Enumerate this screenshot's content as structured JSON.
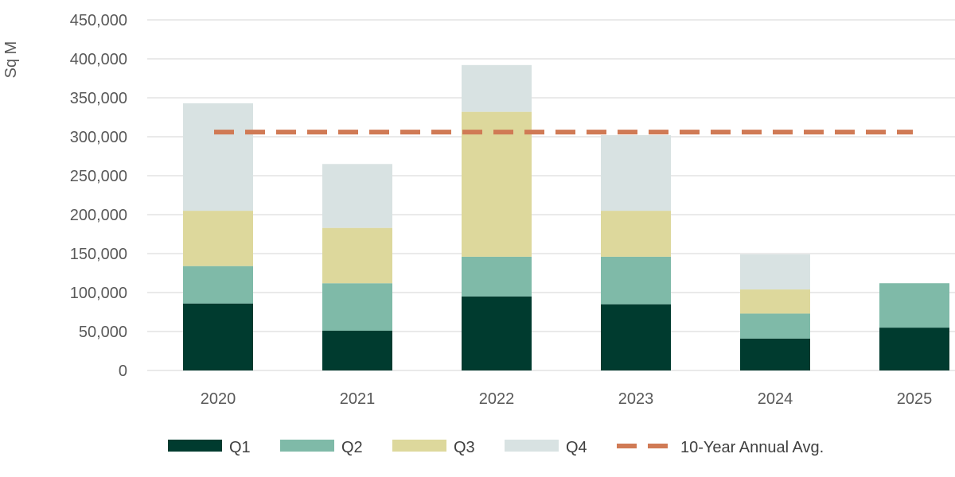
{
  "chart_data": {
    "type": "bar",
    "stacked": true,
    "title": "",
    "xlabel": "",
    "ylabel": "Sq M",
    "ylim": [
      0,
      450000
    ],
    "yticks": [
      0,
      50000,
      100000,
      150000,
      200000,
      250000,
      300000,
      350000,
      400000,
      450000
    ],
    "ytick_labels": [
      "0",
      "50,000",
      "100,000",
      "150,000",
      "200,000",
      "250,000",
      "300,000",
      "350,000",
      "400,000",
      "450,000"
    ],
    "grid": true,
    "legend_position": "bottom",
    "categories": [
      "2020",
      "2021",
      "2022",
      "2023",
      "2024",
      "2025"
    ],
    "series": [
      {
        "name": "Q1",
        "color": "#003b2f",
        "values": [
          86000,
          51000,
          95000,
          85000,
          41000,
          55000
        ]
      },
      {
        "name": "Q2",
        "color": "#7fbaa8",
        "values": [
          48000,
          61000,
          51000,
          61000,
          32000,
          57000
        ]
      },
      {
        "name": "Q3",
        "color": "#ddd89c",
        "values": [
          71000,
          71000,
          186000,
          59000,
          31000,
          0
        ]
      },
      {
        "name": "Q4",
        "color": "#d8e2e2",
        "values": [
          138000,
          82000,
          60000,
          97000,
          45000,
          0
        ]
      }
    ],
    "reference_line": {
      "name": "10-Year Annual Avg.",
      "value": 306000,
      "color": "#d07a55",
      "style": "dashed"
    }
  }
}
